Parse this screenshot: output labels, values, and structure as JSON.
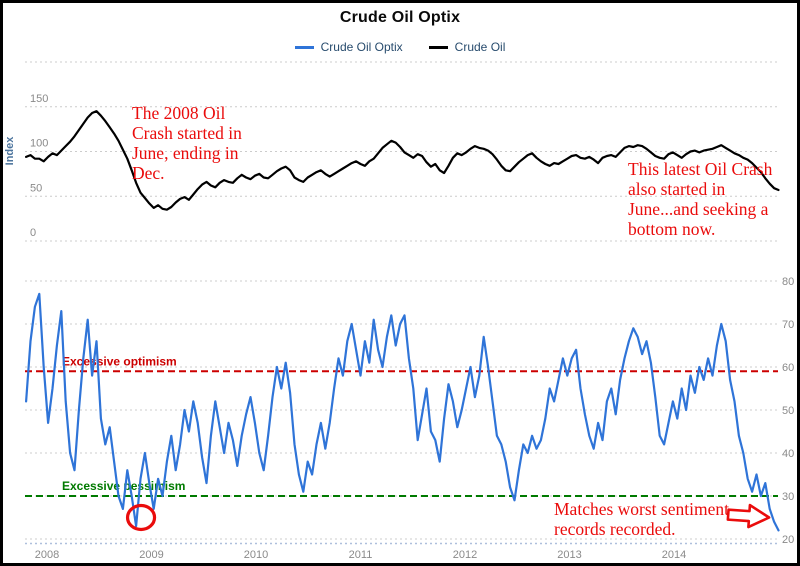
{
  "title": "Crude Oil Optix",
  "legend": {
    "items": [
      {
        "label": "Crude Oil Optix",
        "color": "#2f74d8"
      },
      {
        "label": "Crude Oil",
        "color": "#000000"
      }
    ]
  },
  "colors": {
    "background": "#ffffff",
    "border": "#000000",
    "gridline": "#cccccc",
    "tick_label": "#8a8a8a",
    "axis_title": "#4d759e",
    "x_axis_line": "#aebfdc",
    "legend_text": "#274b6d"
  },
  "annotations": {
    "color": "#ea0c0c",
    "note_2008": "The 2008 Oil\nCrash started in\nJune, ending in\nDec.",
    "note_2014": "This latest Oil Crash\nalso started in\nJune...and seeking a\nbottom now.",
    "note_match": "Matches worst sentiment\nrecords recorded.",
    "circle": {
      "year": 2008.9,
      "value": 25
    },
    "arrow": {
      "year": 2014.91,
      "value": 25,
      "direction": "right"
    }
  },
  "chart_data": [
    {
      "type": "line",
      "panel": "top",
      "ylabel": "Index",
      "ylim": [
        0,
        200
      ],
      "yticks": [
        0,
        50,
        100,
        150
      ],
      "grid": "horizontal-dashed",
      "x_range": [
        2007.8,
        2015.0
      ],
      "series": [
        {
          "name": "Crude Oil",
          "color": "#000000",
          "values": [
            94,
            96,
            92,
            92,
            89,
            94,
            98,
            96,
            101,
            106,
            111,
            117,
            124,
            131,
            138,
            143,
            145,
            140,
            134,
            127,
            120,
            112,
            102,
            92,
            79,
            65,
            54,
            48,
            42,
            37,
            40,
            36,
            35,
            38,
            43,
            47,
            49,
            46,
            52,
            58,
            63,
            66,
            62,
            60,
            65,
            68,
            66,
            65,
            70,
            74,
            71,
            69,
            73,
            75,
            71,
            70,
            74,
            78,
            81,
            83,
            79,
            71,
            68,
            66,
            71,
            74,
            77,
            79,
            75,
            72,
            75,
            78,
            81,
            84,
            87,
            89,
            86,
            84,
            89,
            92,
            98,
            104,
            108,
            112,
            110,
            105,
            99,
            96,
            93,
            97,
            95,
            88,
            83,
            86,
            79,
            76,
            84,
            93,
            98,
            96,
            99,
            103,
            106,
            104,
            103,
            101,
            97,
            91,
            84,
            79,
            78,
            83,
            88,
            92,
            96,
            98,
            93,
            89,
            86,
            84,
            87,
            86,
            89,
            92,
            95,
            96,
            93,
            92,
            94,
            91,
            87,
            93,
            95,
            96,
            94,
            99,
            104,
            106,
            105,
            107,
            106,
            103,
            99,
            95,
            93,
            92,
            97,
            99,
            96,
            93,
            97,
            100,
            101,
            99,
            101,
            102,
            103,
            105,
            107,
            104,
            101,
            98,
            96,
            93,
            91,
            87,
            82,
            77,
            70,
            64,
            59,
            57
          ]
        }
      ]
    },
    {
      "type": "line",
      "panel": "bottom",
      "title": "Crude Oil Optix",
      "ylim": [
        20,
        80
      ],
      "yticks": [
        20,
        30,
        40,
        50,
        60,
        70,
        80
      ],
      "y_axis_side": "right",
      "x_range": [
        2007.8,
        2015.0
      ],
      "xticks": [
        2008,
        2009,
        2010,
        2011,
        2012,
        2013,
        2014
      ],
      "thresholds": [
        {
          "label": "Excessive optimism",
          "value": 59,
          "color": "#cc0000",
          "style": "dashed"
        },
        {
          "label": "Excessive pessimism",
          "value": 30,
          "color": "#007a00",
          "style": "dashed"
        }
      ],
      "series": [
        {
          "name": "Crude Oil Optix",
          "color": "#2f74d8",
          "values": [
            52,
            66,
            74,
            77,
            60,
            47,
            55,
            65,
            73,
            52,
            40,
            36,
            50,
            62,
            71,
            58,
            66,
            48,
            42,
            46,
            38,
            30,
            27,
            36,
            30,
            23,
            34,
            40,
            33,
            27,
            34,
            30,
            38,
            44,
            36,
            42,
            50,
            45,
            52,
            47,
            39,
            33,
            44,
            52,
            46,
            40,
            47,
            43,
            37,
            44,
            49,
            53,
            47,
            40,
            36,
            44,
            53,
            60,
            55,
            61,
            54,
            42,
            35,
            31,
            38,
            35,
            42,
            47,
            41,
            47,
            55,
            62,
            58,
            66,
            70,
            64,
            58,
            66,
            61,
            71,
            64,
            60,
            67,
            72,
            65,
            70,
            72,
            62,
            55,
            43,
            49,
            55,
            45,
            43,
            38,
            48,
            56,
            52,
            46,
            50,
            55,
            60,
            53,
            58,
            67,
            60,
            52,
            44,
            42,
            38,
            32,
            29,
            36,
            42,
            40,
            44,
            41,
            43,
            48,
            55,
            52,
            57,
            62,
            58,
            62,
            64,
            55,
            49,
            44,
            41,
            47,
            43,
            52,
            55,
            49,
            57,
            62,
            66,
            69,
            67,
            63,
            66,
            61,
            53,
            44,
            42,
            47,
            52,
            48,
            55,
            50,
            58,
            54,
            60,
            57,
            62,
            58,
            65,
            70,
            66,
            57,
            52,
            44,
            40,
            34,
            31,
            35,
            30,
            33,
            27,
            24,
            22
          ]
        }
      ]
    }
  ]
}
